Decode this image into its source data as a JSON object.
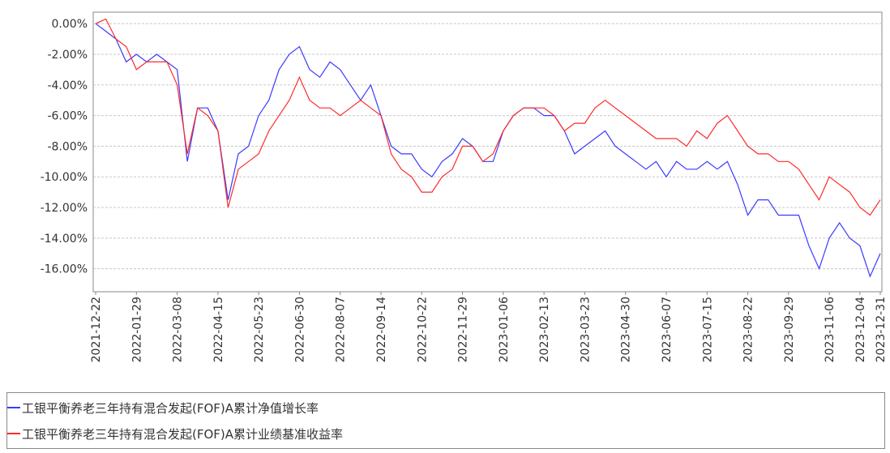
{
  "chart_data": {
    "type": "line",
    "categories": [
      "2021-12-22",
      null,
      null,
      null,
      "2022-01-29",
      null,
      null,
      null,
      "2022-03-08",
      null,
      null,
      null,
      "2022-04-15",
      null,
      null,
      null,
      "2022-05-23",
      null,
      null,
      null,
      "2022-06-30",
      null,
      null,
      null,
      "2022-08-07",
      null,
      null,
      null,
      "2022-09-14",
      null,
      null,
      null,
      "2022-10-22",
      null,
      null,
      null,
      "2022-11-29",
      null,
      null,
      null,
      "2023-01-06",
      null,
      null,
      null,
      "2023-02-13",
      null,
      null,
      null,
      "2023-03-23",
      null,
      null,
      null,
      "2023-04-30",
      null,
      null,
      null,
      "2023-06-07",
      null,
      null,
      null,
      "2023-07-15",
      null,
      null,
      null,
      "2023-08-22",
      null,
      null,
      null,
      "2023-09-29",
      null,
      null,
      null,
      "2023-11-06",
      null,
      null,
      "2023-12-04",
      null,
      "2023-12-31"
    ],
    "series": [
      {
        "name": "工银平衡养老三年持有混合发起(FOF)A累计净值增长率",
        "color": "#3a3aff",
        "values": [
          0,
          -0.5,
          -1,
          -2.5,
          -2,
          -2.5,
          -2,
          -2.5,
          -3,
          -9,
          -5.5,
          -5.5,
          -7,
          -11.5,
          -8.5,
          -8,
          -6,
          -5,
          -3,
          -2,
          -1.5,
          -3,
          -3.5,
          -2.5,
          -3,
          -4,
          -5,
          -4,
          -6,
          -8,
          -8.5,
          -8.5,
          -9.5,
          -10,
          -9,
          -8.5,
          -7.5,
          -8,
          -9,
          -9,
          -7,
          -6,
          -5.5,
          -5.5,
          -6,
          -6,
          -7,
          -8.5,
          -8,
          -7.5,
          -7,
          -8,
          -8.5,
          -9,
          -9.5,
          -9,
          -10,
          -9,
          -9.5,
          -9.5,
          -9,
          -9.5,
          -9,
          -10.5,
          -12.5,
          -11.5,
          -11.5,
          -12.5,
          -12.5,
          -12.5,
          -14.5,
          -16,
          -14,
          -13,
          -14,
          -14.5,
          -16.5,
          -15
        ]
      },
      {
        "name": "工银平衡养老三年持有混合发起(FOF)A累计业绩基准收益率",
        "color": "#ff2a2a",
        "values": [
          0,
          0.3,
          -1,
          -1.5,
          -3,
          -2.5,
          -2.5,
          -2.5,
          -4,
          -8.5,
          -5.5,
          -6,
          -7,
          -12,
          -9.5,
          -9,
          -8.5,
          -7,
          -6,
          -5,
          -3.5,
          -5,
          -5.5,
          -5.5,
          -6,
          -5.5,
          -5,
          -5.5,
          -6,
          -8.5,
          -9.5,
          -10,
          -11,
          -11,
          -10,
          -9.5,
          -8,
          -8,
          -9,
          -8.5,
          -7,
          -6,
          -5.5,
          -5.5,
          -5.5,
          -6,
          -7,
          -6.5,
          -6.5,
          -5.5,
          -5,
          -5.5,
          -6,
          -6.5,
          -7,
          -7.5,
          -7.5,
          -7.5,
          -8,
          -7,
          -7.5,
          -6.5,
          -6,
          -7,
          -8,
          -8.5,
          -8.5,
          -9,
          -9,
          -9.5,
          -10.5,
          -11.5,
          -10,
          -10.5,
          -11,
          -12,
          -12.5,
          -11.5
        ]
      }
    ],
    "ylim": [
      -17.5,
      0.75
    ],
    "yticks": [
      {
        "value": 0,
        "label": "0.00%"
      },
      {
        "value": -2,
        "label": "-2.00%"
      },
      {
        "value": -4,
        "label": "-4.00%"
      },
      {
        "value": -6,
        "label": "-6.00%"
      },
      {
        "value": -8,
        "label": "-8.00%"
      },
      {
        "value": -10,
        "label": "-10.00%"
      },
      {
        "value": -12,
        "label": "-12.00%"
      },
      {
        "value": -14,
        "label": "-14.00%"
      },
      {
        "value": -16,
        "label": "-16.00%"
      }
    ],
    "grid": true
  }
}
